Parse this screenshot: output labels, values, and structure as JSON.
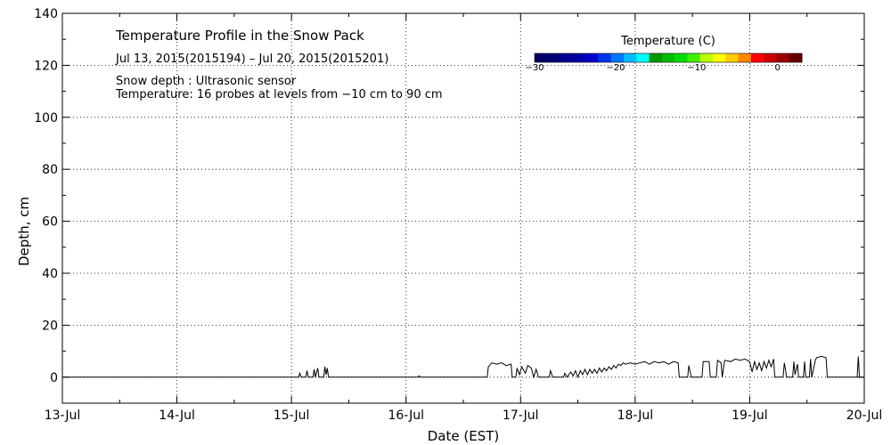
{
  "chart_data": {
    "type": "line",
    "title": "Temperature Profile in the Snow Pack",
    "date_range": "Jul 13, 2015(2015194) – Jul 20, 2015(2015201)",
    "note_snow_depth": "Snow depth : Ultrasonic sensor",
    "note_temperature": "Temperature: 16 probes at levels from −10 cm to 90 cm",
    "xlabel": "Date (EST)",
    "ylabel": "Depth, cm",
    "xlim": [
      "2015-07-13",
      "2015-07-20"
    ],
    "ylim": [
      -10,
      140
    ],
    "x_ticks": [
      "13-Jul",
      "14-Jul",
      "15-Jul",
      "16-Jul",
      "17-Jul",
      "18-Jul",
      "19-Jul",
      "20-Jul"
    ],
    "y_ticks": [
      0,
      20,
      40,
      60,
      80,
      100,
      120,
      140
    ],
    "grid": true,
    "colorbar": {
      "title": "Temperature (C)",
      "range": [
        -30,
        3
      ],
      "tick_labels": [
        "−30",
        "−20",
        "−10",
        "0"
      ],
      "tick_values": [
        -30,
        -20,
        -10,
        0
      ],
      "colors": [
        "#000066",
        "#00007a",
        "#00008f",
        "#0000aa",
        "#0000cc",
        "#0033ee",
        "#0077ff",
        "#00bbff",
        "#00ffff",
        "#009900",
        "#00bb00",
        "#00dd00",
        "#44ee00",
        "#bbff00",
        "#ffff00",
        "#ffcc00",
        "#ff8800",
        "#ff0000",
        "#cc0000",
        "#990000",
        "#660000"
      ]
    },
    "series": [
      {
        "values": [
          [
            "2015-07-13 00:00",
            0
          ],
          [
            "2015-07-15 00:00",
            0
          ],
          [
            "2015-07-15 01:30",
            0
          ],
          [
            "2015-07-15 01:45",
            1.5
          ],
          [
            "2015-07-15 02:00",
            0
          ],
          [
            "2015-07-15 03:00",
            0
          ],
          [
            "2015-07-15 03:15",
            2.5
          ],
          [
            "2015-07-15 03:30",
            0
          ],
          [
            "2015-07-15 04:30",
            0
          ],
          [
            "2015-07-15 04:45",
            3
          ],
          [
            "2015-07-15 05:00",
            0
          ],
          [
            "2015-07-15 05:30",
            3.5
          ],
          [
            "2015-07-15 05:45",
            0
          ],
          [
            "2015-07-15 06:45",
            0
          ],
          [
            "2015-07-15 07:00",
            4
          ],
          [
            "2015-07-15 07:15",
            1
          ],
          [
            "2015-07-15 07:30",
            3.5
          ],
          [
            "2015-07-15 07:45",
            0
          ],
          [
            "2015-07-16 02:30",
            0
          ],
          [
            "2015-07-16 02:45",
            0.5
          ],
          [
            "2015-07-16 03:00",
            0
          ],
          [
            "2015-07-16 17:00",
            0
          ],
          [
            "2015-07-16 17:15",
            4
          ],
          [
            "2015-07-16 18:00",
            5.5
          ],
          [
            "2015-07-16 19:00",
            5
          ],
          [
            "2015-07-16 20:00",
            5.5
          ],
          [
            "2015-07-16 21:00",
            4.5
          ],
          [
            "2015-07-16 22:00",
            5
          ],
          [
            "2015-07-16 22:15",
            0
          ],
          [
            "2015-07-16 23:00",
            0
          ],
          [
            "2015-07-16 23:15",
            3.5
          ],
          [
            "2015-07-16 23:45",
            1
          ],
          [
            "2015-07-17 00:15",
            4
          ],
          [
            "2015-07-17 01:00",
            1.5
          ],
          [
            "2015-07-17 01:30",
            4.5
          ],
          [
            "2015-07-17 02:15",
            3.5
          ],
          [
            "2015-07-17 02:45",
            0
          ],
          [
            "2015-07-17 03:15",
            3
          ],
          [
            "2015-07-17 03:45",
            0
          ],
          [
            "2015-07-17 06:00",
            0
          ],
          [
            "2015-07-17 06:15",
            2.5
          ],
          [
            "2015-07-17 06:45",
            0
          ],
          [
            "2015-07-17 09:00",
            0
          ],
          [
            "2015-07-17 09:15",
            1.5
          ],
          [
            "2015-07-17 09:45",
            0
          ],
          [
            "2015-07-17 10:30",
            2
          ],
          [
            "2015-07-17 11:00",
            0.5
          ],
          [
            "2015-07-17 11:30",
            2.5
          ],
          [
            "2015-07-17 12:00",
            0
          ],
          [
            "2015-07-17 12:30",
            2.5
          ],
          [
            "2015-07-17 13:00",
            1
          ],
          [
            "2015-07-17 13:30",
            3
          ],
          [
            "2015-07-17 14:00",
            1
          ],
          [
            "2015-07-17 14:30",
            3
          ],
          [
            "2015-07-17 15:00",
            1.5
          ],
          [
            "2015-07-17 15:30",
            3
          ],
          [
            "2015-07-17 16:00",
            1.5
          ],
          [
            "2015-07-17 16:30",
            3.5
          ],
          [
            "2015-07-17 17:00",
            2
          ],
          [
            "2015-07-17 17:30",
            3.5
          ],
          [
            "2015-07-17 18:00",
            2.5
          ],
          [
            "2015-07-17 18:30",
            4
          ],
          [
            "2015-07-17 19:00",
            3
          ],
          [
            "2015-07-17 19:30",
            4.5
          ],
          [
            "2015-07-17 20:00",
            3.5
          ],
          [
            "2015-07-17 20:30",
            5
          ],
          [
            "2015-07-17 21:00",
            4.5
          ],
          [
            "2015-07-17 21:30",
            5.5
          ],
          [
            "2015-07-17 22:00",
            5
          ],
          [
            "2015-07-17 23:00",
            5.5
          ],
          [
            "2015-07-18 00:00",
            5
          ],
          [
            "2015-07-18 01:00",
            5.5
          ],
          [
            "2015-07-18 02:00",
            6
          ],
          [
            "2015-07-18 03:00",
            5
          ],
          [
            "2015-07-18 04:00",
            6
          ],
          [
            "2015-07-18 05:00",
            5.5
          ],
          [
            "2015-07-18 06:00",
            6
          ],
          [
            "2015-07-18 07:00",
            5
          ],
          [
            "2015-07-18 08:00",
            6
          ],
          [
            "2015-07-18 09:00",
            5.5
          ],
          [
            "2015-07-18 09:15",
            0
          ],
          [
            "2015-07-18 11:00",
            0
          ],
          [
            "2015-07-18 11:15",
            4.5
          ],
          [
            "2015-07-18 11:45",
            0
          ],
          [
            "2015-07-18 14:00",
            0
          ],
          [
            "2015-07-18 14:15",
            6
          ],
          [
            "2015-07-18 15:30",
            6
          ],
          [
            "2015-07-18 15:45",
            0
          ],
          [
            "2015-07-18 17:00",
            0
          ],
          [
            "2015-07-18 17:15",
            6.5
          ],
          [
            "2015-07-18 18:00",
            5.5
          ],
          [
            "2015-07-18 18:15",
            0
          ],
          [
            "2015-07-18 18:45",
            6.5
          ],
          [
            "2015-07-18 20:00",
            6
          ],
          [
            "2015-07-18 21:00",
            7
          ],
          [
            "2015-07-18 22:00",
            6.5
          ],
          [
            "2015-07-18 23:00",
            7
          ],
          [
            "2015-07-19 00:00",
            6
          ],
          [
            "2015-07-19 00:30",
            2
          ],
          [
            "2015-07-19 01:00",
            6
          ],
          [
            "2015-07-19 01:30",
            3
          ],
          [
            "2015-07-19 02:00",
            5.5
          ],
          [
            "2015-07-19 02:30",
            2.5
          ],
          [
            "2015-07-19 03:00",
            6
          ],
          [
            "2015-07-19 03:30",
            3.5
          ],
          [
            "2015-07-19 04:00",
            6.5
          ],
          [
            "2015-07-19 04:30",
            4
          ],
          [
            "2015-07-19 05:00",
            7
          ],
          [
            "2015-07-19 05:15",
            0
          ],
          [
            "2015-07-19 07:00",
            0
          ],
          [
            "2015-07-19 07:15",
            5.5
          ],
          [
            "2015-07-19 07:45",
            0
          ],
          [
            "2015-07-19 09:00",
            0
          ],
          [
            "2015-07-19 09:15",
            6
          ],
          [
            "2015-07-19 09:30",
            1
          ],
          [
            "2015-07-19 10:00",
            5
          ],
          [
            "2015-07-19 10:15",
            0
          ],
          [
            "2015-07-19 11:15",
            0
          ],
          [
            "2015-07-19 11:30",
            6
          ],
          [
            "2015-07-19 11:45",
            0
          ],
          [
            "2015-07-19 12:30",
            0
          ],
          [
            "2015-07-19 12:45",
            7
          ],
          [
            "2015-07-19 13:00",
            0
          ],
          [
            "2015-07-19 13:45",
            6.5
          ],
          [
            "2015-07-19 14:00",
            7.5
          ],
          [
            "2015-07-19 15:00",
            8
          ],
          [
            "2015-07-19 16:00",
            7.5
          ],
          [
            "2015-07-19 16:15",
            0
          ],
          [
            "2015-07-19 22:30",
            0
          ],
          [
            "2015-07-19 22:45",
            8
          ],
          [
            "2015-07-19 23:00",
            0
          ],
          [
            "2015-07-20 00:00",
            0
          ]
        ]
      }
    ]
  }
}
